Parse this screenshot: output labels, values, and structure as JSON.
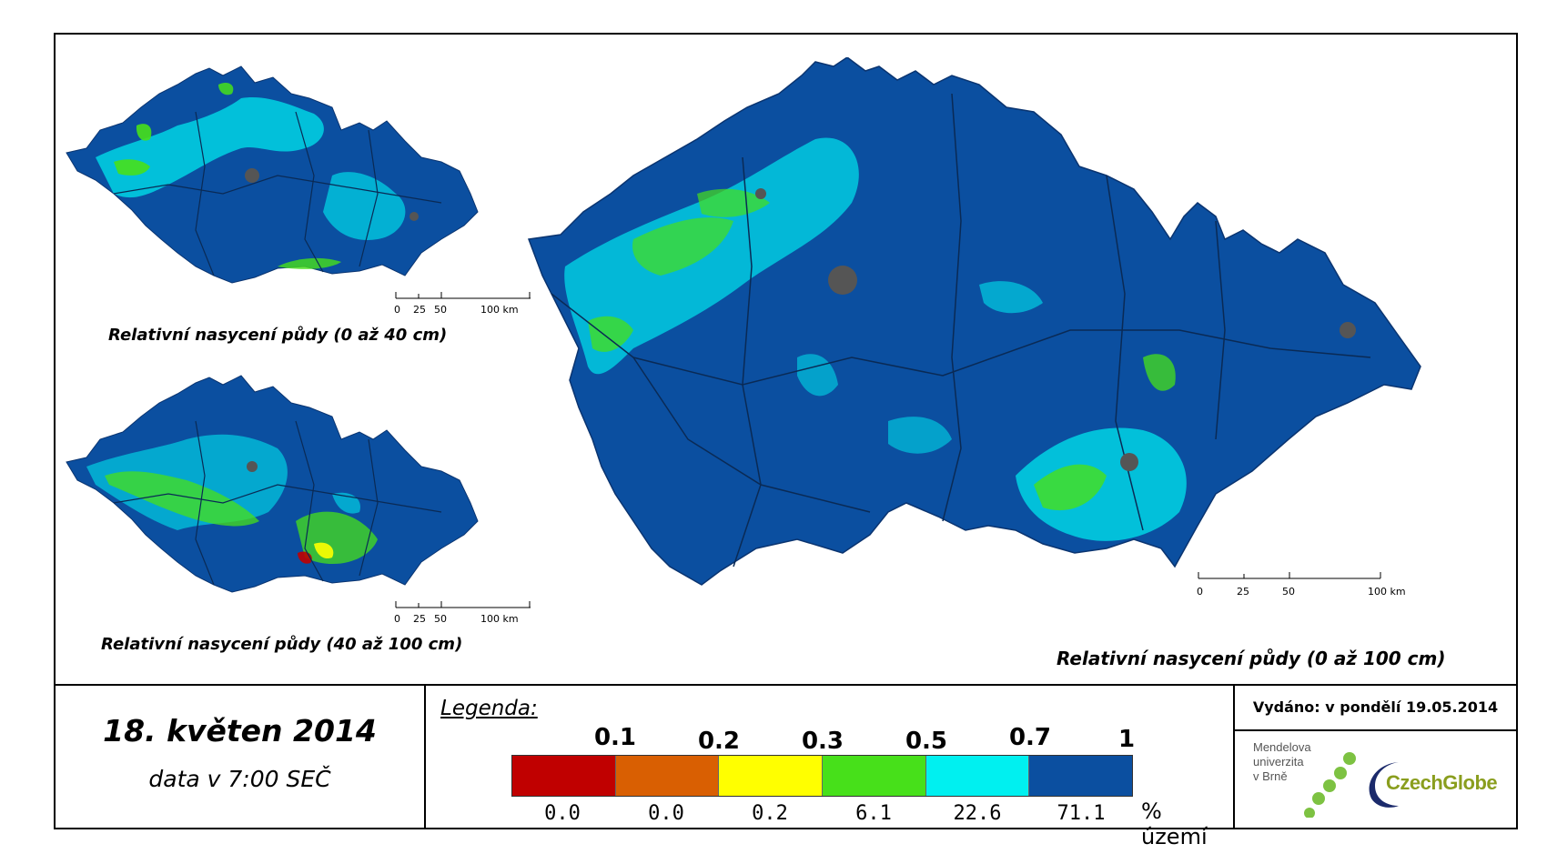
{
  "maps": {
    "top_left": {
      "caption": "Relativní nasycení půdy (0 až 40 cm)"
    },
    "bottom_left": {
      "caption": "Relativní nasycení půdy (40 až 100 cm)"
    },
    "main": {
      "caption": "Relativní nasycení půdy (0 až 100 cm)"
    },
    "scale_labels": [
      "0",
      "25",
      "50",
      "100 km"
    ]
  },
  "date": {
    "main": "18. květen 2014",
    "sub": "data v 7:00 SEČ"
  },
  "legend": {
    "title": "Legenda:",
    "thresholds": [
      "0.1",
      "0.2",
      "0.3",
      "0.5",
      "0.7",
      "1"
    ],
    "classes": [
      {
        "color": "#c00000",
        "percent": "0.0"
      },
      {
        "color": "#d95f02",
        "percent": "0.0"
      },
      {
        "color": "#ffff00",
        "percent": "0.2"
      },
      {
        "color": "#47e01a",
        "percent": "6.1"
      },
      {
        "color": "#00f0f0",
        "percent": "22.6"
      },
      {
        "color": "#0b4fa0",
        "percent": "71.1"
      }
    ],
    "unit": "% území"
  },
  "issued": {
    "text": "Vydáno: v pondělí 19.05.2014"
  },
  "logos": {
    "mendel": "Mendelova\nuniverzita\nv Brně",
    "czechglobe": "CzechGlobe"
  }
}
